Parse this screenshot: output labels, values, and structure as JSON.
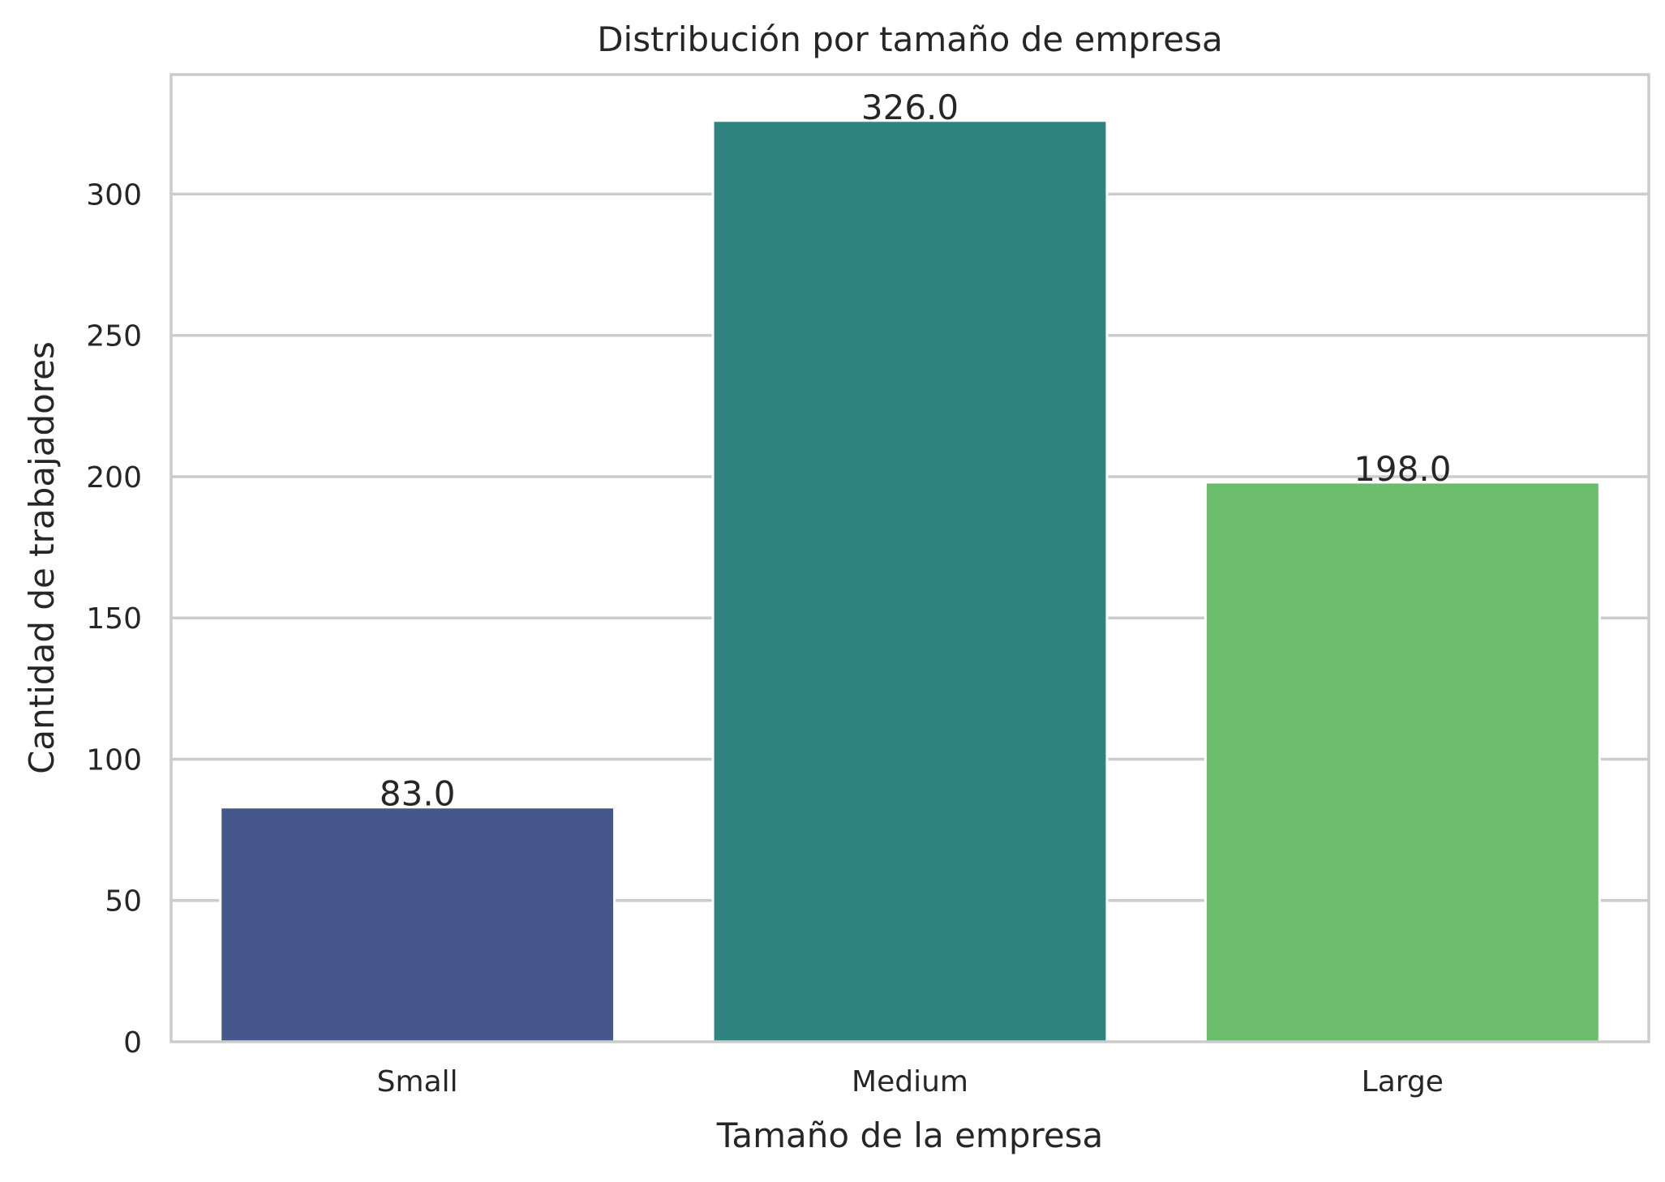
{
  "chart_data": {
    "type": "bar",
    "title": "Distribución por tamaño de empresa",
    "xlabel": "Tamaño de la empresa",
    "ylabel": "Cantidad de trabajadores",
    "categories": [
      "Small",
      "Medium",
      "Large"
    ],
    "values": [
      83,
      326,
      198
    ],
    "data_labels": [
      "83.0",
      "326.0",
      "198.0"
    ],
    "colors": [
      "#46588b",
      "#2f847f",
      "#6bbd6c"
    ],
    "yticks": [
      0,
      50,
      100,
      150,
      200,
      250,
      300
    ],
    "ylim": [
      0,
      342.3
    ],
    "grid": "horizontal",
    "legend": "none"
  }
}
